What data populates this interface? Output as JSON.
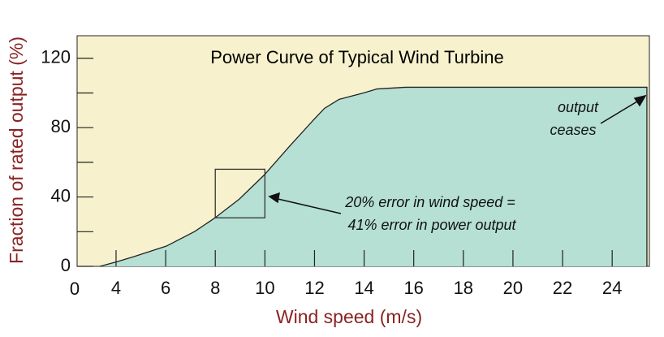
{
  "chart_data": {
    "type": "area",
    "title": "Power Curve of Typical Wind Turbine",
    "x_label": "Wind speed (m/s)",
    "y_label": "Fraction of rated output (%)",
    "x_origin_label": "0",
    "x": [
      3.35,
      4.07,
      4.72,
      6.03,
      7.17,
      7.99,
      8.97,
      9.98,
      10.99,
      11.97,
      12.4,
      12.99,
      13.97,
      14.52,
      15.67,
      25.4,
      25.4
    ],
    "values": [
      0,
      2.8,
      5.6,
      11.7,
      20.1,
      28.0,
      38.8,
      52.8,
      69.2,
      84.6,
      91.1,
      96.3,
      100,
      102.3,
      103.3,
      103.3,
      0
    ],
    "color": "#b5e0d3",
    "background": "#f7f2cd",
    "xlim": [
      2.43,
      25.5
    ],
    "ylim": [
      0,
      133
    ],
    "xticks": [
      4,
      6,
      8,
      10,
      12,
      14,
      16,
      18,
      20,
      22,
      24
    ],
    "yticks": [
      0,
      40,
      80,
      120
    ],
    "yminor": [
      20,
      60,
      100
    ],
    "box": {
      "x": [
        8,
        10
      ],
      "y": [
        28,
        56
      ]
    },
    "annotations": [
      "output",
      "ceases",
      "20% error in wind speed =",
      "41% error in power output"
    ]
  }
}
